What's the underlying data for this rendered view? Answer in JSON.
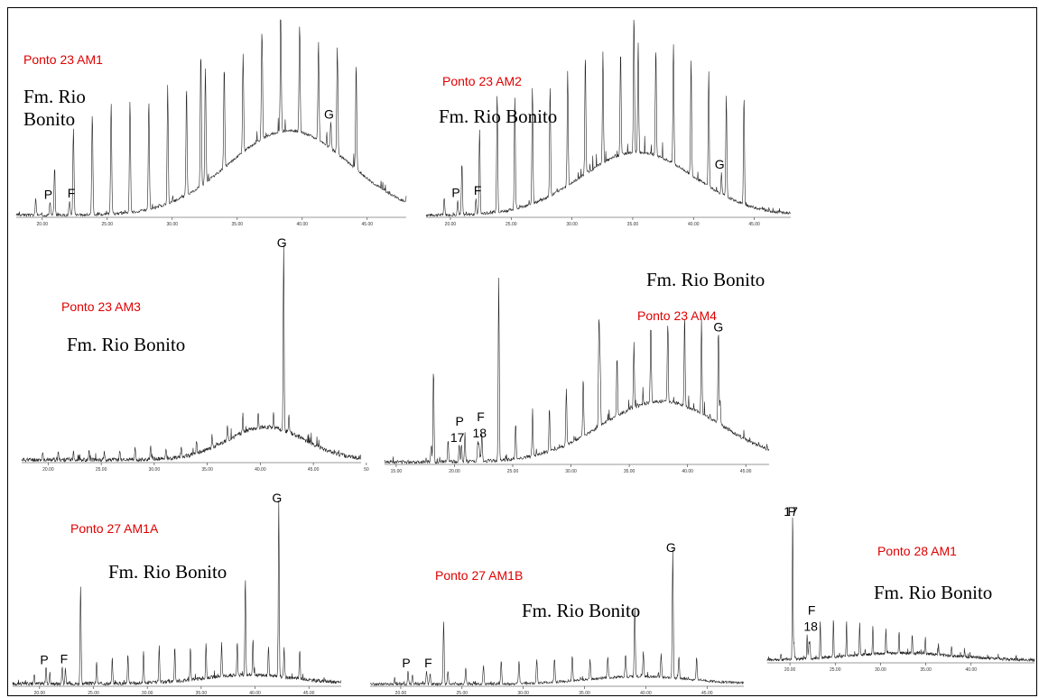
{
  "chart_data": [
    {
      "type": "line",
      "sample": "Ponto 23 AM1",
      "formation": "Fm. Rio\nBonito",
      "xlim": [
        18,
        48
      ],
      "x_ticks": [
        "20.00",
        "25.00",
        "30.00",
        "35.00",
        "40.00",
        "45.00"
      ],
      "peak_labels": [
        {
          "label": "P",
          "x": 20.6
        },
        {
          "label": "F",
          "x": 22.1
        },
        {
          "label": "G",
          "x": 42.2
        }
      ]
    },
    {
      "type": "line",
      "sample": "Ponto 23 AM2",
      "formation": "Fm. Rio Bonito",
      "xlim": [
        18,
        48
      ],
      "x_ticks": [
        "20.00",
        "25.00",
        "30.00",
        "35.00",
        "40.00",
        "45.00"
      ],
      "peak_labels": [
        {
          "label": "P",
          "x": 20.6
        },
        {
          "label": "F",
          "x": 22.1
        },
        {
          "label": "G",
          "x": 42.3
        }
      ]
    },
    {
      "type": "line",
      "sample": "Ponto 23 AM3",
      "formation": "Fm. Rio Bonito",
      "xlim": [
        17.5,
        49.5
      ],
      "x_ticks": [
        "20.00",
        "25.00",
        "30.00",
        "35.00",
        "40.00",
        "45.00",
        "50"
      ],
      "peak_labels": [
        {
          "label": "G",
          "x": 42.2
        }
      ]
    },
    {
      "type": "line",
      "sample": "Ponto 23 AM4",
      "formation": "Fm. Rio Bonito",
      "xlim": [
        14,
        47
      ],
      "x_ticks": [
        "15.00",
        "20.00",
        "25.00",
        "30.00",
        "35.00",
        "40.00",
        "45.00"
      ],
      "peak_labels": [
        {
          "label": "17",
          "x": 20.4
        },
        {
          "label": "P",
          "x": 20.6
        },
        {
          "label": "18",
          "x": 22.0
        },
        {
          "label": "F",
          "x": 22.1
        },
        {
          "label": "G",
          "x": 42.8
        }
      ]
    },
    {
      "type": "line",
      "sample": "Ponto 27 AM1A",
      "formation": "Fm. Rio Bonito",
      "xlim": [
        17.5,
        48
      ],
      "x_ticks": [
        "20.00",
        "25.00",
        "30.00",
        "35.00",
        "40.00",
        "45.00"
      ],
      "peak_labels": [
        {
          "label": "P",
          "x": 20.6
        },
        {
          "label": "F",
          "x": 22.1
        },
        {
          "label": "G",
          "x": 42.2
        }
      ]
    },
    {
      "type": "line",
      "sample": "Ponto 27 AM1B",
      "formation": "Fm. Rio Bonito",
      "xlim": [
        17.5,
        48
      ],
      "x_ticks": [
        "20.00",
        "25.00",
        "30.00",
        "35.00",
        "40.00",
        "45.00"
      ],
      "peak_labels": [
        {
          "label": "P",
          "x": 20.6
        },
        {
          "label": "F",
          "x": 22.1
        },
        {
          "label": "G",
          "x": 42.2
        }
      ]
    },
    {
      "type": "line",
      "sample": "Ponto 28 AM1",
      "formation": "Fm. Rio Bonito",
      "xlim": [
        17.5,
        47
      ],
      "x_ticks": [
        "20.00",
        "25.00",
        "30.00",
        "35.00",
        "40.00"
      ],
      "peak_labels": [
        {
          "label": "17",
          "x": 20.3
        },
        {
          "label": "P",
          "x": 20.4
        },
        {
          "label": "18",
          "x": 22.1
        },
        {
          "label": "F",
          "x": 22.2
        }
      ]
    }
  ]
}
